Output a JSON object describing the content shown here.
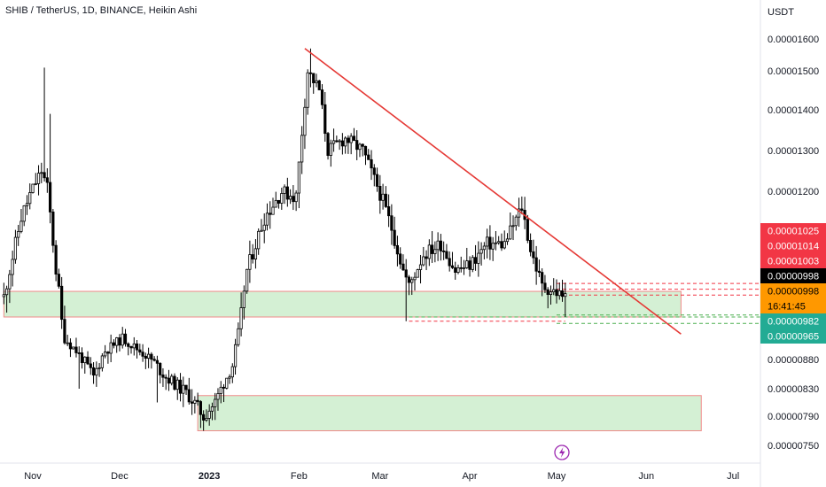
{
  "header": {
    "symbol_title": "SHIB / TetherUS, 1D, BINANCE, Heikin Ashi"
  },
  "price_axis": {
    "currency": "USDT",
    "tick_labels": [
      "0.00001600",
      "0.00001500",
      "0.00001400",
      "0.00001300",
      "0.00001200",
      "0.00000880",
      "0.00000830",
      "0.00000790",
      "0.00000750"
    ]
  },
  "time_axis": {
    "labels": [
      "Nov",
      "Dec",
      "2023",
      "Feb",
      "Mar",
      "Apr",
      "May",
      "Jun",
      "Jul"
    ]
  },
  "price_tags": [
    {
      "value": "0.00001025",
      "bg": "#f23645",
      "fg": "#ffffff"
    },
    {
      "value": "0.00001014",
      "bg": "#f23645",
      "fg": "#ffffff"
    },
    {
      "value": "0.00001003",
      "bg": "#f23645",
      "fg": "#ffffff"
    },
    {
      "value": "0.00000998",
      "bg": "#000000",
      "fg": "#ffffff"
    },
    {
      "value": "0.00000998",
      "bg": "#ff9800",
      "fg": "#000000"
    },
    {
      "value": "16:41:45",
      "bg": "#ff9800",
      "fg": "#000000"
    },
    {
      "value": "0.00000982",
      "bg": "#22ab94",
      "fg": "#ffffff"
    },
    {
      "value": "0.00000965",
      "bg": "#22ab94",
      "fg": "#ffffff"
    }
  ],
  "colors": {
    "candle": "#000000",
    "trendline": "#e53935",
    "zone_fill": "#d4f0d4",
    "zone_border": "#f08a8a",
    "red_dash": "#f23645",
    "green_dash": "#4caf50",
    "grid": "#f0f3fa",
    "divider": "#e0e3eb",
    "dividend_icon": "#9c27b0"
  },
  "icons": {
    "dividend_marker": "lightning-bolt-icon"
  },
  "chart_data": {
    "type": "candlestick",
    "chart_style": "Heikin Ashi",
    "symbol": "SHIB / TetherUS",
    "interval": "1D",
    "exchange": "BINANCE",
    "title": "SHIB / TetherUS, 1D, BINANCE, Heikin Ashi",
    "ylabel": "USDT",
    "ylim": [
      7.3e-06,
      1.66e-05
    ],
    "xlim": [
      "2022-10-22",
      "2023-07-08"
    ],
    "x_ticks": [
      "Nov",
      "Dec",
      "2023",
      "Feb",
      "Mar",
      "Apr",
      "May",
      "Jun",
      "Jul"
    ],
    "y_ticks": [
      1.6e-05,
      1.5e-05,
      1.4e-05,
      1.3e-05,
      1.2e-05,
      8.8e-06,
      8.3e-06,
      7.9e-06,
      7.5e-06
    ],
    "grid": false,
    "last_price": 9.98e-06,
    "countdown": "16:41:45",
    "price_levels": [
      1.025e-05,
      1.014e-05,
      1.003e-05,
      9.98e-06,
      9.82e-06,
      9.65e-06
    ],
    "zones": [
      {
        "start": "2022-10-22",
        "end": "2023-06-13",
        "low": 9.8e-06,
        "high": 1.01e-05
      },
      {
        "start": "2022-12-28",
        "end": "2023-06-20",
        "low": 7.7e-06,
        "high": 8.2e-06
      }
    ],
    "trendline": {
      "from": {
        "date": "2023-02-03",
        "price": 1.57e-05
      },
      "to": {
        "date": "2023-06-13",
        "price": 9.4e-06
      }
    },
    "ohlc_anchors": [
      [
        "2022-10-22",
        1e-05
      ],
      [
        "2022-10-28",
        1.15e-05
      ],
      [
        "2022-11-04",
        1.25e-05
      ],
      [
        "2022-11-06",
        1.21e-05
      ],
      [
        "2022-11-09",
        1.05e-05
      ],
      [
        "2022-11-12",
        9.3e-06
      ],
      [
        "2022-11-16",
        9e-06
      ],
      [
        "2022-11-22",
        8.5e-06
      ],
      [
        "2022-11-26",
        9e-06
      ],
      [
        "2022-12-02",
        9.3e-06
      ],
      [
        "2022-12-06",
        9.1e-06
      ],
      [
        "2022-12-12",
        8.8e-06
      ],
      [
        "2022-12-17",
        8.5e-06
      ],
      [
        "2022-12-25",
        8.2e-06
      ],
      [
        "2022-12-30",
        7.9e-06
      ],
      [
        "2023-01-03",
        8.1e-06
      ],
      [
        "2023-01-09",
        8.7e-06
      ],
      [
        "2023-01-14",
        1.05e-05
      ],
      [
        "2023-01-20",
        1.15e-05
      ],
      [
        "2023-01-26",
        1.2e-05
      ],
      [
        "2023-01-31",
        1.19e-05
      ],
      [
        "2023-02-04",
        1.5e-05
      ],
      [
        "2023-02-08",
        1.45e-05
      ],
      [
        "2023-02-11",
        1.3e-05
      ],
      [
        "2023-02-17",
        1.33e-05
      ],
      [
        "2023-02-23",
        1.3e-05
      ],
      [
        "2023-02-27",
        1.23e-05
      ],
      [
        "2023-03-05",
        1.13e-05
      ],
      [
        "2023-03-09",
        1.05e-05
      ],
      [
        "2023-03-11",
        1.02e-05
      ],
      [
        "2023-03-16",
        1.08e-05
      ],
      [
        "2023-03-22",
        1.1e-05
      ],
      [
        "2023-03-27",
        1.05e-05
      ],
      [
        "2023-04-01",
        1.06e-05
      ],
      [
        "2023-04-07",
        1.1e-05
      ],
      [
        "2023-04-13",
        1.1e-05
      ],
      [
        "2023-04-19",
        1.17e-05
      ],
      [
        "2023-04-22",
        1.09e-05
      ],
      [
        "2023-04-26",
        1.02e-05
      ],
      [
        "2023-04-30",
        1.01e-05
      ],
      [
        "2023-05-04",
        1e-05
      ]
    ]
  }
}
